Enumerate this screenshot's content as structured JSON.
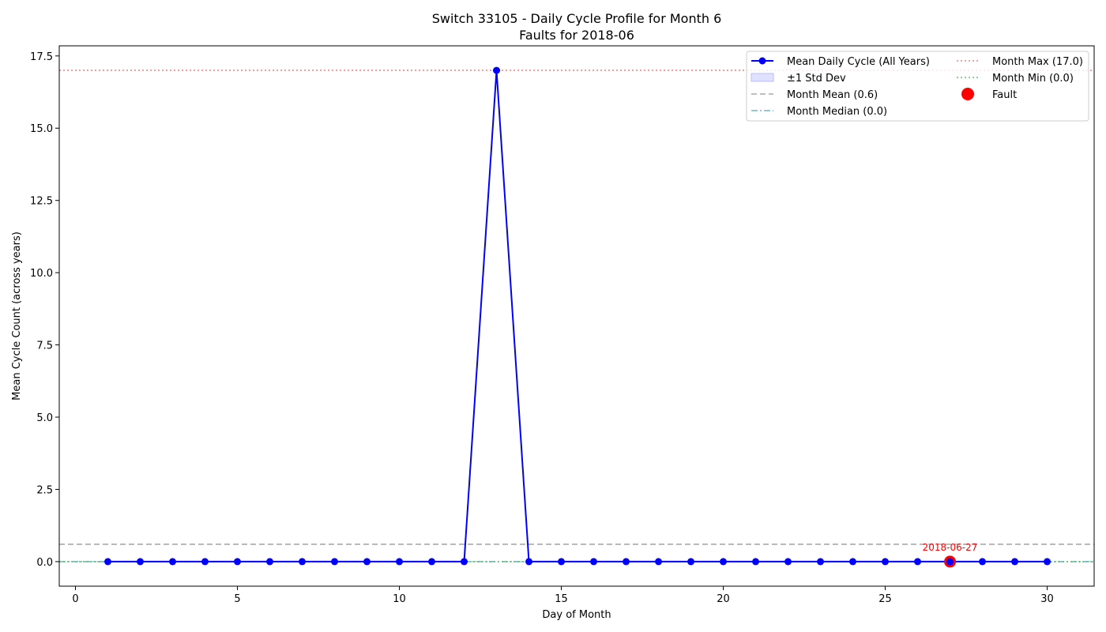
{
  "chart_data": {
    "type": "line",
    "title": "Switch 33105 - Daily Cycle Profile for Month 6",
    "subtitle": "Faults for 2018-06",
    "xlabel": "Day of Month",
    "ylabel": "Mean Cycle Count (across years)",
    "xlim": [
      -0.5,
      31.45
    ],
    "ylim": [
      -0.85,
      17.85
    ],
    "x_ticks": [
      0,
      5,
      10,
      15,
      20,
      25,
      30
    ],
    "y_ticks": [
      0.0,
      2.5,
      5.0,
      7.5,
      10.0,
      12.5,
      15.0,
      17.5
    ],
    "x_tick_labels": [
      "0",
      "5",
      "10",
      "15",
      "20",
      "25",
      "30"
    ],
    "y_tick_labels": [
      "0.0",
      "2.5",
      "5.0",
      "7.5",
      "10.0",
      "12.5",
      "15.0",
      "17.5"
    ],
    "grid": false,
    "legend_position": "top-right",
    "series": [
      {
        "name": "Mean Daily Cycle (All Years)",
        "color": "#0000ff",
        "x": [
          1,
          2,
          3,
          4,
          5,
          6,
          7,
          8,
          9,
          10,
          11,
          12,
          13,
          14,
          15,
          16,
          17,
          18,
          19,
          20,
          21,
          22,
          23,
          24,
          25,
          26,
          27,
          28,
          29,
          30
        ],
        "y": [
          0,
          0,
          0,
          0,
          0,
          0,
          0,
          0,
          0,
          0,
          0,
          0,
          17,
          0,
          0,
          0,
          0,
          0,
          0,
          0,
          0,
          0,
          0,
          0,
          0,
          0,
          0,
          0,
          0,
          0
        ]
      }
    ],
    "std_band": {
      "name": "±1 Std Dev",
      "color": "#ccccff"
    },
    "reference_lines": [
      {
        "name": "Month Mean (0.6)",
        "value": 0.6,
        "color": "#a9a9a9",
        "style": "dashed"
      },
      {
        "name": "Month Median (0.0)",
        "value": 0.0,
        "color": "#70b8c8",
        "style": "dashdot"
      },
      {
        "name": "Month Max (17.0)",
        "value": 17.0,
        "color": "#ff8080",
        "style": "dotted"
      },
      {
        "name": "Month Min (0.0)",
        "value": 0.0,
        "color": "#6fbf6f",
        "style": "dotted"
      }
    ],
    "faults": [
      {
        "name": "Fault",
        "x": 27,
        "y": 0,
        "label": "2018-06-27",
        "color": "#ff0000"
      }
    ]
  }
}
